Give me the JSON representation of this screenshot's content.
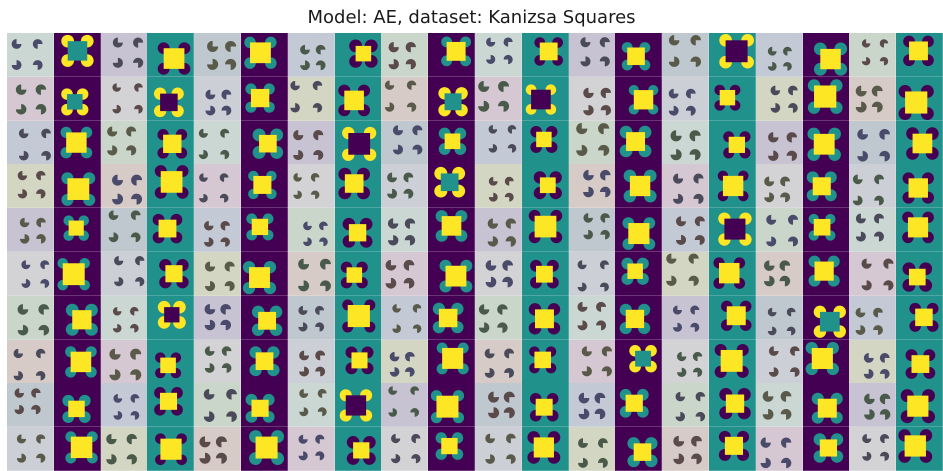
{
  "figure": {
    "title": "Model: AE, dataset: Kanizsa Squares"
  },
  "palette": {
    "viridis_purple": "#440154",
    "viridis_teal": "#21918c",
    "viridis_yellow": "#fde725",
    "input_tints": [
      "#cbd7d2",
      "#d6c8d2",
      "#c3cad6",
      "#d2d6c3",
      "#c7c3d3",
      "#d3d3d6",
      "#c9d6c9",
      "#d7cbc7",
      "#bfc7cf",
      "#cdcfd6"
    ],
    "pacman_colors": [
      "#4a4a6a",
      "#5a4a4a",
      "#4a5a4a",
      "#5a5a4a",
      "#4a4a5a"
    ]
  },
  "grid": {
    "rows": 10,
    "columns": 20,
    "column_kinds": [
      "input",
      "recon_purple",
      "input",
      "recon_teal",
      "input",
      "recon_purple",
      "input",
      "recon_teal",
      "input",
      "recon_purple",
      "input",
      "recon_teal",
      "input",
      "recon_purple",
      "input",
      "recon_teal",
      "input",
      "recon_purple",
      "input",
      "recon_teal"
    ],
    "column_legend": {
      "input": "Kanizsa square input image (four pac-man inducers on pastel background)",
      "recon_purple": "AE reconstruction on viridis purple background",
      "recon_teal": "AE reconstruction on viridis teal background"
    }
  }
}
